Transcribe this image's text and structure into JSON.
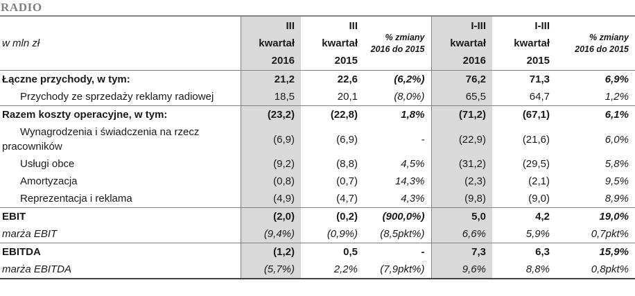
{
  "title": "RADIO",
  "colors": {
    "highlight_bg": "#d9d9d9",
    "border": "#808080",
    "border_dark": "#3f3f3f",
    "title_color": "#7f7f7f",
    "text": "#1a1a1a"
  },
  "table": {
    "unit_label": "w mln zł",
    "columns": [
      {
        "id": "q3-2016",
        "lines": [
          "III",
          "kwartał",
          "2016"
        ],
        "type": "quarter",
        "highlight": true
      },
      {
        "id": "q3-2015",
        "lines": [
          "III",
          "kwartał",
          "2015"
        ],
        "type": "quarter",
        "highlight": false
      },
      {
        "id": "change-q3",
        "lines": [
          "% zmiany",
          "2016 do 2015"
        ],
        "type": "change",
        "highlight": false
      },
      {
        "id": "q13-2016",
        "lines": [
          "I-III",
          "kwartał",
          "2016"
        ],
        "type": "quarter",
        "highlight": true
      },
      {
        "id": "q13-2015",
        "lines": [
          "I-III",
          "kwartał",
          "2015"
        ],
        "type": "quarter",
        "highlight": false
      },
      {
        "id": "change-q13",
        "lines": [
          "% zmiany",
          "2016 do 2015"
        ],
        "type": "change",
        "highlight": false
      }
    ],
    "rows": [
      {
        "label": "Łączne przychody, w tym:",
        "style": "bold",
        "indent": false,
        "section_end": false,
        "values": [
          "21,2",
          "22,6",
          "(6,2%)",
          "76,2",
          "71,3",
          "6,9%"
        ]
      },
      {
        "label": "Przychody ze sprzedaży reklamy radiowej",
        "style": "",
        "indent": true,
        "section_end": true,
        "values": [
          "18,5",
          "20,1",
          "(8,0%)",
          "65,5",
          "64,7",
          "1,2%"
        ]
      },
      {
        "label": "Razem koszty operacyjne, w tym:",
        "style": "bold",
        "indent": false,
        "section_end": false,
        "values": [
          "(23,2)",
          "(22,8)",
          "1,8%",
          "(71,2)",
          "(67,1)",
          "6,1%"
        ]
      },
      {
        "label": "Wynagrodzenia i świadczenia na rzecz pracowników",
        "style": "",
        "indent": true,
        "section_end": false,
        "values": [
          "(6,9)",
          "(6,9)",
          "-",
          "(22,9)",
          "(21,6)",
          "6,0%"
        ]
      },
      {
        "label": "Usługi obce",
        "style": "",
        "indent": true,
        "section_end": false,
        "values": [
          "(9,2)",
          "(8,8)",
          "4,5%",
          "(31,2)",
          "(29,5)",
          "5,8%"
        ]
      },
      {
        "label": "Amortyzacja",
        "style": "",
        "indent": true,
        "section_end": false,
        "values": [
          "(0,8)",
          "(0,7)",
          "14,3%",
          "(2,3)",
          "(2,1)",
          "9,5%"
        ]
      },
      {
        "label": "Reprezentacja i reklama",
        "style": "",
        "indent": true,
        "section_end": true,
        "values": [
          "(4,9)",
          "(4,7)",
          "4,3%",
          "(9,8)",
          "(9,0)",
          "8,9%"
        ]
      },
      {
        "label": "EBIT",
        "style": "bold",
        "indent": false,
        "section_end": false,
        "values": [
          "(2,0)",
          "(0,2)",
          "(900,0%)",
          "5,0",
          "4,2",
          "19,0%"
        ]
      },
      {
        "label": "marża EBIT",
        "style": "italic",
        "indent": false,
        "section_end": true,
        "values": [
          "(9,4%)",
          "(0,9%)",
          "(8,5pkt%)",
          "6,6%",
          "5,9%",
          "0,7pkt%"
        ]
      },
      {
        "label": "EBITDA",
        "style": "bold",
        "indent": false,
        "section_end": false,
        "values": [
          "(1,2)",
          "0,5",
          "-",
          "7,3",
          "6,3",
          "15,9%"
        ]
      },
      {
        "label": "marża EBITDA",
        "style": "italic",
        "indent": false,
        "section_end": false,
        "values": [
          "(5,7%)",
          "2,2%",
          "(7,9pkt%)",
          "9,6%",
          "8,8%",
          "0,8pkt%"
        ]
      }
    ]
  }
}
